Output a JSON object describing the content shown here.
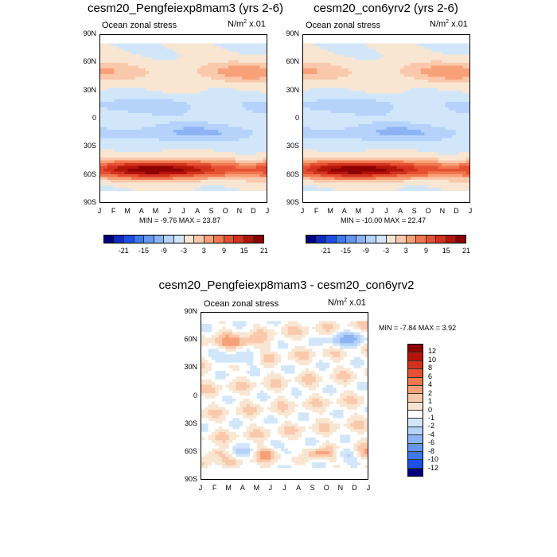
{
  "units": "N/m",
  "units_exp": "2",
  "units_scale": " x.01",
  "subtitle": "Ocean zonal stress",
  "palette": [
    "#00007f",
    "#0a2dc8",
    "#1e50e6",
    "#3c78f0",
    "#6496f0",
    "#8cb4f5",
    "#b4d2fa",
    "#d2e6fa",
    "#f8e6d2",
    "#fac8aa",
    "#f8a078",
    "#f07850",
    "#e65032",
    "#d2321e",
    "#b4140a",
    "#8c0000"
  ],
  "top_colorbar_ticks": [
    "-21",
    "-15",
    "-9",
    "-3",
    "3",
    "9",
    "15",
    "21"
  ],
  "diff_colorbar": {
    "labels": [
      "12",
      "10",
      "8",
      "6",
      "4",
      "2",
      "1",
      "0",
      "-1",
      "-2",
      "-4",
      "-6",
      "-8",
      "-10",
      "-12"
    ],
    "colors": [
      "#8c0000",
      "#b4140a",
      "#d2321e",
      "#e65032",
      "#f07850",
      "#f8a078",
      "#fac8aa",
      "#f8e6d2",
      "#ffffff",
      "#d2e6fa",
      "#b4d2fa",
      "#8cb4f5",
      "#6496f0",
      "#3c78f0",
      "#1e50e6",
      "#00007f"
    ]
  },
  "chart_data": [
    {
      "type": "heatmap",
      "title": "cesm20_Pengfeiexp8mam3 (yrs 2-6)",
      "subtitle": "Ocean zonal stress",
      "xticks": [
        "J",
        "F",
        "M",
        "A",
        "M",
        "J",
        "J",
        "A",
        "S",
        "O",
        "N",
        "D",
        "J"
      ],
      "yticks": [
        "90N",
        "60N",
        "30N",
        "0",
        "30S",
        "60S",
        "90S"
      ],
      "ylim": [
        -90,
        90
      ],
      "min_label": "MIN =  -9.76",
      "max_label": "MAX =  23.87",
      "min": -9.76,
      "max": 23.87,
      "levels": [
        -21,
        -18,
        -15,
        -12,
        -9,
        -6,
        -3,
        0,
        3,
        6,
        9,
        12,
        15,
        18,
        21
      ],
      "pattern": "base"
    },
    {
      "type": "heatmap",
      "title": "cesm20_con6yrv2 (yrs 2-6)",
      "subtitle": "Ocean zonal stress",
      "xticks": [
        "J",
        "F",
        "M",
        "A",
        "M",
        "J",
        "J",
        "A",
        "S",
        "O",
        "N",
        "D",
        "J"
      ],
      "yticks": [
        "90N",
        "60N",
        "30N",
        "0",
        "30S",
        "60S",
        "90S"
      ],
      "ylim": [
        -90,
        90
      ],
      "min_label": "MIN = -10.00",
      "max_label": "MAX =  22.47",
      "min": -10.0,
      "max": 22.47,
      "levels": [
        -21,
        -18,
        -15,
        -12,
        -9,
        -6,
        -3,
        0,
        3,
        6,
        9,
        12,
        15,
        18,
        21
      ],
      "pattern": "base"
    },
    {
      "type": "heatmap",
      "title": "cesm20_Pengfeiexp8mam3 - cesm20_con6yrv2",
      "subtitle": "Ocean zonal stress",
      "xticks": [
        "J",
        "F",
        "M",
        "A",
        "M",
        "J",
        "J",
        "A",
        "S",
        "O",
        "N",
        "D",
        "J"
      ],
      "yticks": [
        "90N",
        "60N",
        "30N",
        "0",
        "30S",
        "60S",
        "90S"
      ],
      "ylim": [
        -90,
        90
      ],
      "min_label": "MIN =  -7.84",
      "max_label": "MAX =   3.92",
      "min": -7.84,
      "max": 3.92,
      "levels": [
        -12,
        -10,
        -8,
        -6,
        -4,
        -2,
        -1,
        0,
        1,
        2,
        4,
        6,
        8,
        10,
        12
      ],
      "pattern": "diff"
    }
  ]
}
